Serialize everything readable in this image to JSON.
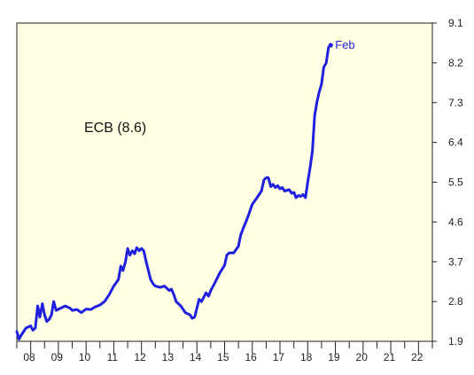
{
  "chart_data": {
    "type": "line",
    "title": "",
    "xlabel": "",
    "ylabel": "",
    "annotation": "ECB (8.6)",
    "end_label": "Feb",
    "colors": {
      "background": "#FFFFE3",
      "line": "#1F1FE0",
      "axis": "#222222"
    },
    "ylim": [
      1.9,
      9.1
    ],
    "xlim": [
      2008.0,
      2023.0
    ],
    "yticks": [
      "1.9",
      "2.8",
      "3.7",
      "4.6",
      "5.5",
      "6.4",
      "7.3",
      "8.2",
      "9.1"
    ],
    "xtick_labels": [
      "08",
      "09",
      "10",
      "11",
      "12",
      "13",
      "14",
      "15",
      "16",
      "17",
      "18",
      "19",
      "20",
      "21",
      "22"
    ],
    "legend": "none",
    "grid": false,
    "series": [
      {
        "values": [
          [
            2008.0,
            2.12
          ],
          [
            2008.08,
            1.95
          ],
          [
            2008.17,
            2.05
          ],
          [
            2008.33,
            2.2
          ],
          [
            2008.5,
            2.25
          ],
          [
            2008.58,
            2.15
          ],
          [
            2008.67,
            2.2
          ],
          [
            2008.75,
            2.7
          ],
          [
            2008.83,
            2.45
          ],
          [
            2008.92,
            2.75
          ],
          [
            2009.0,
            2.5
          ],
          [
            2009.08,
            2.35
          ],
          [
            2009.17,
            2.4
          ],
          [
            2009.25,
            2.5
          ],
          [
            2009.33,
            2.8
          ],
          [
            2009.42,
            2.6
          ],
          [
            2009.58,
            2.65
          ],
          [
            2009.75,
            2.7
          ],
          [
            2009.92,
            2.65
          ],
          [
            2010.0,
            2.6
          ],
          [
            2010.17,
            2.62
          ],
          [
            2010.33,
            2.55
          ],
          [
            2010.5,
            2.63
          ],
          [
            2010.67,
            2.62
          ],
          [
            2010.83,
            2.68
          ],
          [
            2011.0,
            2.72
          ],
          [
            2011.17,
            2.8
          ],
          [
            2011.33,
            2.95
          ],
          [
            2011.5,
            3.15
          ],
          [
            2011.67,
            3.3
          ],
          [
            2011.75,
            3.6
          ],
          [
            2011.83,
            3.5
          ],
          [
            2011.92,
            3.7
          ],
          [
            2012.0,
            4.0
          ],
          [
            2012.08,
            3.85
          ],
          [
            2012.17,
            3.95
          ],
          [
            2012.25,
            3.88
          ],
          [
            2012.33,
            4.02
          ],
          [
            2012.42,
            3.95
          ],
          [
            2012.5,
            4.0
          ],
          [
            2012.58,
            3.95
          ],
          [
            2012.67,
            3.7
          ],
          [
            2012.75,
            3.5
          ],
          [
            2012.83,
            3.3
          ],
          [
            2012.92,
            3.2
          ],
          [
            2013.0,
            3.15
          ],
          [
            2013.17,
            3.12
          ],
          [
            2013.33,
            3.15
          ],
          [
            2013.5,
            3.05
          ],
          [
            2013.58,
            3.08
          ],
          [
            2013.67,
            2.95
          ],
          [
            2013.75,
            2.8
          ],
          [
            2013.92,
            2.7
          ],
          [
            2014.08,
            2.55
          ],
          [
            2014.25,
            2.5
          ],
          [
            2014.33,
            2.42
          ],
          [
            2014.42,
            2.45
          ],
          [
            2014.5,
            2.65
          ],
          [
            2014.58,
            2.85
          ],
          [
            2014.67,
            2.8
          ],
          [
            2014.75,
            2.9
          ],
          [
            2014.83,
            3.0
          ],
          [
            2014.92,
            2.92
          ],
          [
            2015.0,
            3.05
          ],
          [
            2015.17,
            3.25
          ],
          [
            2015.33,
            3.45
          ],
          [
            2015.5,
            3.62
          ],
          [
            2015.58,
            3.85
          ],
          [
            2015.67,
            3.9
          ],
          [
            2015.83,
            3.9
          ],
          [
            2016.0,
            4.05
          ],
          [
            2016.08,
            4.3
          ],
          [
            2016.17,
            4.45
          ],
          [
            2016.33,
            4.7
          ],
          [
            2016.5,
            5.0
          ],
          [
            2016.67,
            5.15
          ],
          [
            2016.83,
            5.3
          ],
          [
            2016.92,
            5.55
          ],
          [
            2017.0,
            5.6
          ],
          [
            2017.08,
            5.6
          ],
          [
            2017.17,
            5.4
          ],
          [
            2017.25,
            5.45
          ],
          [
            2017.33,
            5.38
          ],
          [
            2017.42,
            5.42
          ],
          [
            2017.5,
            5.35
          ],
          [
            2017.58,
            5.38
          ],
          [
            2017.67,
            5.3
          ],
          [
            2017.83,
            5.33
          ],
          [
            2017.92,
            5.25
          ],
          [
            2018.0,
            5.27
          ],
          [
            2018.08,
            5.15
          ],
          [
            2018.17,
            5.2
          ],
          [
            2018.25,
            5.18
          ],
          [
            2018.33,
            5.22
          ],
          [
            2018.42,
            5.15
          ],
          [
            2018.5,
            5.5
          ],
          [
            2018.58,
            5.8
          ],
          [
            2018.67,
            6.2
          ],
          [
            2018.75,
            7.0
          ],
          [
            2018.83,
            7.3
          ],
          [
            2018.92,
            7.55
          ],
          [
            2019.0,
            7.72
          ],
          [
            2019.08,
            8.1
          ],
          [
            2019.17,
            8.2
          ],
          [
            2019.25,
            8.55
          ],
          [
            2019.33,
            8.6
          ]
        ]
      }
    ]
  }
}
